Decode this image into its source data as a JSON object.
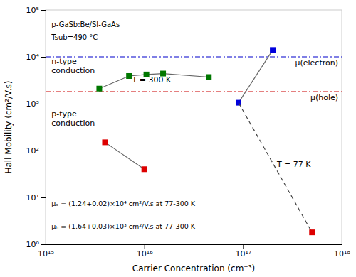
{
  "chart_data": {
    "type": "line",
    "log": true,
    "xlabel": "Carrier Concentration  (cm⁻³)",
    "ylabel": "Hall Mobility  (cm²/V.s)",
    "xlim": [
      1000000000000000.0,
      1e+18
    ],
    "ylim": [
      1,
      100000.0
    ],
    "xticks": [
      {
        "value": 1000000000000000.0,
        "label": "10¹⁵"
      },
      {
        "value": 1e+16,
        "label": "10¹⁶"
      },
      {
        "value": 1e+17,
        "label": "10¹⁷"
      },
      {
        "value": 1e+18,
        "label": "10¹⁸"
      }
    ],
    "yticks": [
      {
        "value": 1,
        "label": "10⁰"
      },
      {
        "value": 10,
        "label": "10¹"
      },
      {
        "value": 100,
        "label": "10²"
      },
      {
        "value": 1000,
        "label": "10³"
      },
      {
        "value": 10000,
        "label": "10⁴"
      },
      {
        "value": 100000,
        "label": "10⁵"
      }
    ],
    "grid": false,
    "reference_lines": [
      {
        "y": 10000,
        "color": "#0000CC",
        "label": "μ(electron)"
      },
      {
        "y": 1800,
        "color": "#CC0000",
        "label": "μ(hole)"
      }
    ],
    "series": [
      {
        "type": "line",
        "marker": "square",
        "color": "#007700",
        "x": [
          3500000000000000.0,
          7000000000000000.0,
          1.05e+16,
          1.55e+16,
          4.5e+16
        ],
        "values": [
          2100,
          3900,
          4200,
          4400,
          3700
        ]
      },
      {
        "type": "line",
        "marker": "square",
        "color": "#DD0000",
        "x": [
          4000000000000000.0,
          1e+16
        ],
        "values": [
          150,
          40
        ]
      },
      {
        "type": "line",
        "marker": "square",
        "color": "#0000DD",
        "x": [
          9e+16,
          2e+17
        ],
        "values": [
          1050,
          14000
        ]
      },
      {
        "type": "line",
        "marker": "none",
        "line_style": "dashed",
        "x": [
          9e+16,
          5e+17
        ],
        "values": [
          1050,
          1.8
        ]
      },
      {
        "type": "scatter",
        "marker": "square",
        "color": "#DD0000",
        "x": [
          5e+17
        ],
        "values": [
          1.8
        ]
      }
    ],
    "annotations": [
      {
        "text": "p-GaSb:Be/SI-GaAs"
      },
      {
        "text": "Tsub=490 °C"
      },
      {
        "text": "n-type\nconduction"
      },
      {
        "text": "p-type\nconduction"
      },
      {
        "text": "T = 300 K"
      },
      {
        "text": "T = 77 K"
      },
      {
        "text": "μₑ = (1.24+0.02)×10⁴ cm²/V.s at 77-300 K"
      },
      {
        "text": "μₕ = (1.64+0.03)×10³ cm²/V.s at 77-300 K"
      }
    ]
  }
}
